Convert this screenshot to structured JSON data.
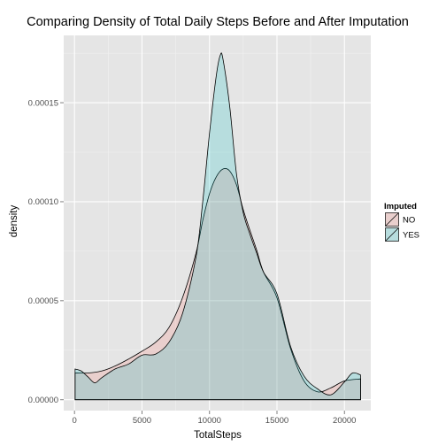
{
  "chart_data": {
    "type": "area",
    "title": "Comparing Density of Total Daily Steps Before and After Imputation",
    "xlabel": "TotalSteps",
    "ylabel": "density",
    "xlim": [
      -800,
      21950
    ],
    "ylim": [
      -5.5e-06,
      0.000184
    ],
    "x_ticks": [
      {
        "value": 0,
        "label": "0"
      },
      {
        "value": 5000,
        "label": "5000"
      },
      {
        "value": 10000,
        "label": "10000"
      },
      {
        "value": 15000,
        "label": "15000"
      },
      {
        "value": 20000,
        "label": "20000"
      }
    ],
    "y_ticks": [
      {
        "value": 0,
        "label": "0.00000"
      },
      {
        "value": 5e-05,
        "label": "0.00005"
      },
      {
        "value": 0.0001,
        "label": "0.00010"
      },
      {
        "value": 0.00015,
        "label": "0.00015"
      }
    ],
    "grid": true,
    "legend": {
      "title": "Imputed",
      "position": "right",
      "entries": [
        "NO",
        "YES"
      ]
    },
    "series": [
      {
        "name": "NO",
        "fill": "#f8766d",
        "x": [
          41,
          1000,
          2000,
          3000,
          4000,
          5000,
          6000,
          7000,
          8000,
          9000,
          9500,
          10000,
          10500,
          11000,
          11500,
          12000,
          12500,
          13000,
          13500,
          14000,
          15000,
          16000,
          17000,
          18000,
          19000,
          20000,
          21194
        ],
        "y": [
          1.35e-05,
          1.35e-05,
          1.45e-05,
          1.7e-05,
          2.05e-05,
          2.45e-05,
          2.9e-05,
          3.65e-05,
          5.15e-05,
          7.4e-05,
          9.05e-05,
          0.000104,
          0.0001125,
          0.0001165,
          0.0001155,
          0.0001085,
          9.6e-05,
          8.55e-05,
          7.55e-05,
          6.45e-05,
          5.15e-05,
          2.6e-05,
          9.5e-06,
          4e-06,
          6e-06,
          9.5e-06,
          1.05e-05
        ]
      },
      {
        "name": "YES",
        "fill": "#00bfc4",
        "x": [
          41,
          500,
          1000,
          1500,
          2000,
          3000,
          4000,
          5000,
          6000,
          7000,
          8000,
          9000,
          9500,
          10000,
          10500,
          10800,
          11000,
          11500,
          12000,
          12500,
          13000,
          13500,
          14000,
          15000,
          16000,
          17000,
          18000,
          19000,
          20000,
          20600,
          21194
        ],
        "y": [
          1.55e-05,
          1.45e-05,
          1.15e-05,
          8.5e-06,
          1.1e-05,
          1.55e-05,
          1.8e-05,
          2.25e-05,
          2.3e-05,
          2.9e-05,
          4.35e-05,
          7.2e-05,
          0.0001,
          0.0001345,
          0.0001635,
          0.000174,
          0.000172,
          0.000148,
          0.000114,
          9.45e-05,
          8.35e-05,
          7.4e-05,
          6.45e-05,
          5.35e-05,
          2.7e-05,
          1.2e-05,
          5.5e-06,
          2.5e-06,
          9e-06,
          1.35e-05,
          1.25e-05
        ]
      }
    ]
  }
}
